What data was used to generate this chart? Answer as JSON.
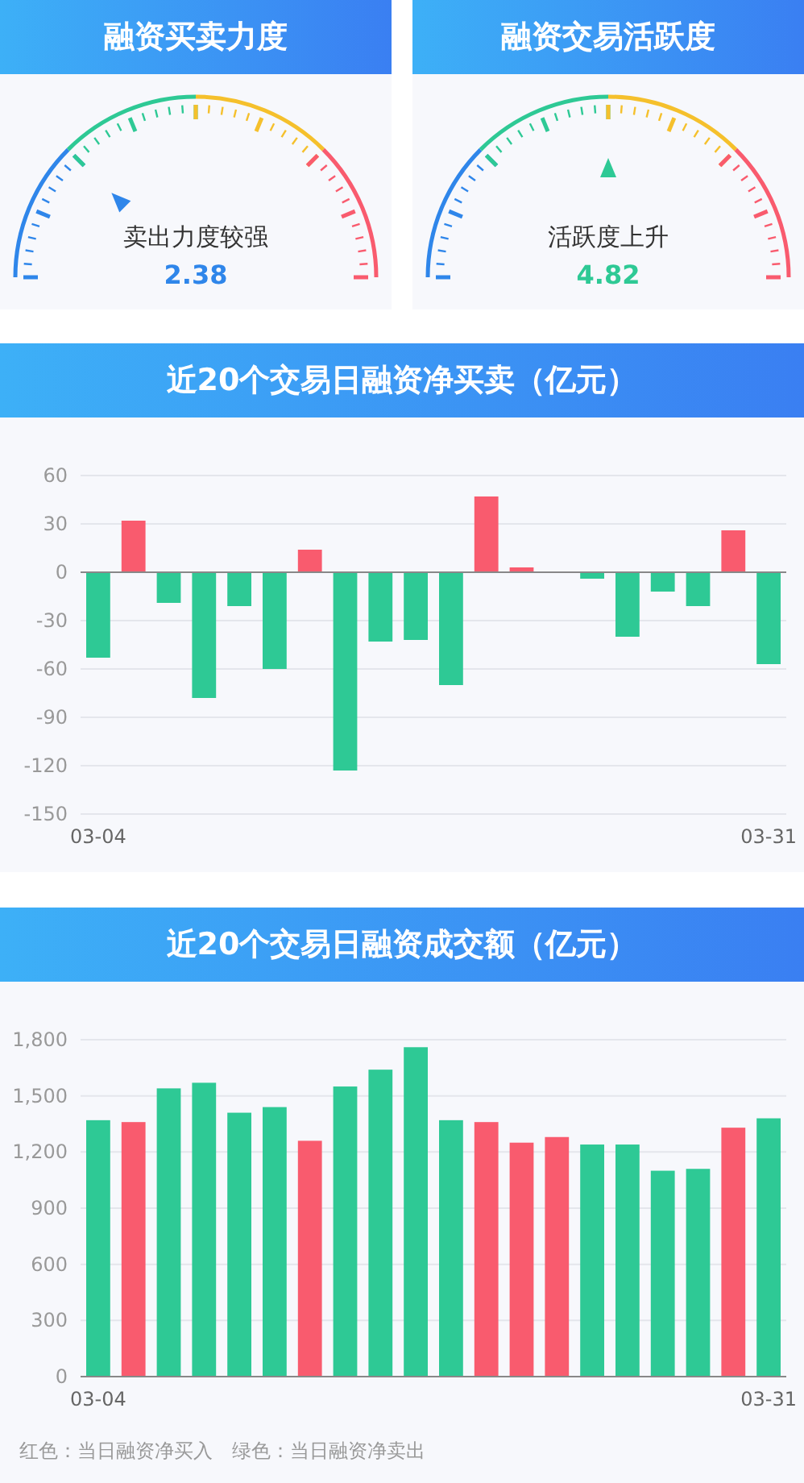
{
  "chart_data": [
    {
      "type": "other",
      "title": "融资买卖力度",
      "annotations": [
        "卖出力度较强",
        "2.38"
      ]
    },
    {
      "type": "other",
      "title": "融资交易活跃度",
      "annotations": [
        "活跃度上升",
        "4.82"
      ]
    },
    {
      "type": "bar",
      "title": "近20个交易日融资净买卖（亿元）",
      "categories": [
        "03-04",
        null,
        null,
        null,
        null,
        null,
        null,
        null,
        null,
        null,
        null,
        null,
        null,
        null,
        null,
        null,
        null,
        null,
        null,
        "03-31"
      ],
      "values": [
        -53,
        32,
        -19,
        -78,
        -21,
        -60,
        14,
        -123,
        -43,
        -42,
        -70,
        47,
        3,
        0,
        -4,
        -40,
        -12,
        -21,
        26,
        -57
      ],
      "colors": [
        "#2ec995",
        "#f95b6e",
        "#2ec995",
        "#2ec995",
        "#2ec995",
        "#2ec995",
        "#f95b6e",
        "#2ec995",
        "#2ec995",
        "#2ec995",
        "#2ec995",
        "#f95b6e",
        "#f95b6e",
        "#f95b6e",
        "#2ec995",
        "#2ec995",
        "#2ec995",
        "#2ec995",
        "#f95b6e",
        "#2ec995"
      ],
      "ylim": [
        -150,
        60
      ],
      "yticks": [
        -150,
        -120,
        -90,
        -60,
        -30,
        0,
        30,
        60
      ],
      "grid": "y"
    },
    {
      "type": "bar",
      "title": "近20个交易日融资成交额（亿元）",
      "categories": [
        "03-04",
        null,
        null,
        null,
        null,
        null,
        null,
        null,
        null,
        null,
        null,
        null,
        null,
        null,
        null,
        null,
        null,
        null,
        null,
        "03-31"
      ],
      "values": [
        1370,
        1360,
        1540,
        1570,
        1410,
        1440,
        1260,
        1550,
        1640,
        1760,
        1370,
        1360,
        1250,
        1280,
        1240,
        1240,
        1100,
        1110,
        1330,
        1380
      ],
      "colors": [
        "#2ec995",
        "#f95b6e",
        "#2ec995",
        "#2ec995",
        "#2ec995",
        "#2ec995",
        "#f95b6e",
        "#2ec995",
        "#2ec995",
        "#2ec995",
        "#2ec995",
        "#f95b6e",
        "#f95b6e",
        "#f95b6e",
        "#2ec995",
        "#2ec995",
        "#2ec995",
        "#2ec995",
        "#f95b6e",
        "#2ec995"
      ],
      "ylim": [
        0,
        1800
      ],
      "yticks": [
        0,
        300,
        600,
        900,
        {
          "value": 1200,
          "label": "1,200"
        },
        {
          "value": 1500,
          "label": "1,500"
        },
        {
          "value": 1800,
          "label": "1,800"
        }
      ],
      "grid": "y",
      "annotations": [
        "红色：当日融资净买入　绿色：当日融资净卖出"
      ]
    }
  ]
}
